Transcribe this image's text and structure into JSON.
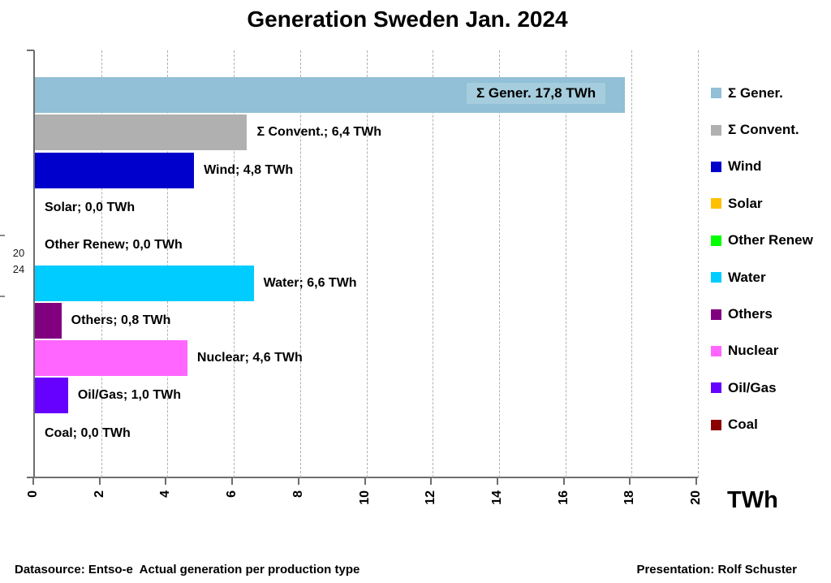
{
  "title": "Generation Sweden Jan. 2024",
  "footer": {
    "left": "Datasource: Entso-e  Actual generation per production type",
    "right": "Presentation: Rolf Schuster"
  },
  "colors": {
    "axis": "#6e6e6e",
    "gridline": "#b0b0b0",
    "inside_label_bg": "#a5cddd"
  },
  "chart_data": {
    "type": "bar",
    "orientation": "horizontal",
    "title": "Generation Sweden Jan. 2024",
    "x_axis_title": "TWh",
    "year_label_lines": [
      "20",
      "24"
    ],
    "xlim": [
      0,
      20
    ],
    "x_ticks": [
      0,
      2,
      4,
      6,
      8,
      10,
      12,
      14,
      16,
      18,
      20
    ],
    "grid": "dashed-vertical-every-2",
    "legend_position": "right",
    "categories": [
      "Σ Gener.",
      "Σ Convent.",
      "Wind",
      "Solar",
      "Other Renew",
      "Water",
      "Others",
      "Nuclear",
      "Oil/Gas",
      "Coal"
    ],
    "values": [
      17.8,
      6.4,
      4.8,
      0.0,
      0.0,
      6.6,
      0.8,
      4.6,
      1.0,
      0.0
    ],
    "series": [
      {
        "name": "Σ Gener.",
        "value": 17.8,
        "label": "Σ Gener. 17,8 TWh",
        "color": "#92c0d6",
        "label_position": "inside"
      },
      {
        "name": "Σ Convent.",
        "value": 6.4,
        "label": "Σ Convent.; 6,4 TWh",
        "color": "#b0b0b0",
        "label_position": "outside"
      },
      {
        "name": "Wind",
        "value": 4.8,
        "label": "Wind; 4,8 TWh",
        "color": "#0000cc",
        "label_position": "outside"
      },
      {
        "name": "Solar",
        "value": 0.0,
        "label": "Solar; 0,0 TWh",
        "color": "#ffc000",
        "label_position": "outside"
      },
      {
        "name": "Other Renew",
        "value": 0.0,
        "label": "Other Renew; 0,0 TWh",
        "color": "#00ff00",
        "label_position": "outside"
      },
      {
        "name": "Water",
        "value": 6.6,
        "label": "Water; 6,6 TWh",
        "color": "#00ccff",
        "label_position": "outside"
      },
      {
        "name": "Others",
        "value": 0.8,
        "label": "Others; 0,8 TWh",
        "color": "#800080",
        "label_position": "outside"
      },
      {
        "name": "Nuclear",
        "value": 4.6,
        "label": "Nuclear; 4,6 TWh",
        "color": "#ff66ff",
        "label_position": "outside"
      },
      {
        "name": "Oil/Gas",
        "value": 1.0,
        "label": "Oil/Gas; 1,0 TWh",
        "color": "#6600ff",
        "label_position": "outside"
      },
      {
        "name": "Coal",
        "value": 0.0,
        "label": "Coal; 0,0 TWh",
        "color": "#8b0000",
        "label_position": "outside"
      }
    ]
  }
}
